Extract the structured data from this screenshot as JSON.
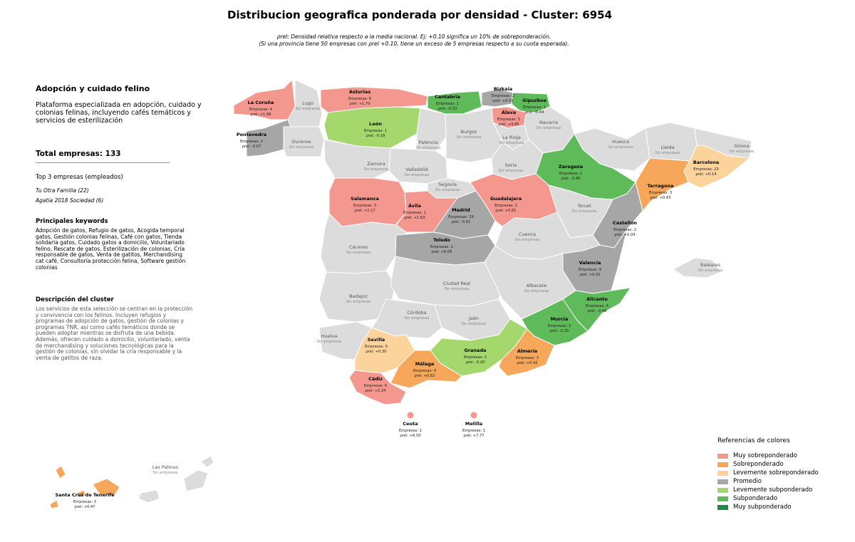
{
  "title": "Distribucion geografica ponderada por densidad - Cluster: 6954",
  "note_line1": "ρrel: Densidad relativa respecto a la media nacional. Ej: +0.10 significa un 10% de sobreponderación.",
  "note_line2": "(Si una provincia tiene 50 empresas con ρrel +0.10, tiene un exceso de 5 empresas respecto a su cuota esperada).",
  "panel": {
    "cluster_title": "Adopción y cuidado felino",
    "description": "Plataforma especializada en adopción, cuidado y colonias felinas, incluyendo cafés temáticos y servicios de esterilización",
    "total": "Total empresas: 133",
    "top3_heading": "Top 3 empresas (empleados)",
    "top3": [
      "Tu Otra Familia (22)",
      "Agatia 2018 Sociedad (6)"
    ],
    "keywords_heading": "Principales keywords",
    "keywords": "Adopción de gatos, Refugio de gatos, Acogida temporal gatos, Gestión colonias felinas, Café con gatos, Tienda solidaria gatos, Cuidado gatos a domicilio, Voluntariado felino, Rescate de gatos, Esterilización de colonias, Cría responsable de gatos, Venta de gatitos, Merchandising cat café, Consultoría protección felina, Software gestión colonias",
    "cluster_heading": "Descripción del cluster",
    "cluster_text": "Los servicios de esta selección se centran en la protección y convivencia con los felinos. Incluyen refugios y programas de adopción de gatos, gestión de colonias y programas TNR, así como cafés temáticos donde se pueden adoptar mientras se disfruta de una bebida. Además, ofrecen cuidado a domicilio, voluntariado, venta de merchandising y soluciones tecnológicas para la gestión de colonias, sin olvidar la cría responsable y la venta de gatitos de raza."
  },
  "legend": {
    "title": "Referencias de colores",
    "items": [
      {
        "label": "Muy sobreponderado",
        "color": "#f4978e"
      },
      {
        "label": "Sobreponderado",
        "color": "#f6a75a"
      },
      {
        "label": "Levemente sobreponderado",
        "color": "#fcd39b"
      },
      {
        "label": "Promedio",
        "color": "#a6a6a6"
      },
      {
        "label": "Levemente subponderado",
        "color": "#a4d86c"
      },
      {
        "label": "Subponderado",
        "color": "#5fba5a"
      },
      {
        "label": "Muy subponderado",
        "color": "#1d8a4a"
      }
    ]
  },
  "no_data_text": "Sin empresas",
  "provinces": [
    {
      "name": "La Coruña",
      "empresas": "Empresas: 4",
      "rho": "ρrel: +1.96",
      "category": "Muy sobreponderado"
    },
    {
      "name": "Lugo",
      "category": "none"
    },
    {
      "name": "Asturias",
      "empresas": "Empresas: 6",
      "rho": "ρrel: +1.70",
      "category": "Muy sobreponderado"
    },
    {
      "name": "Cantabria",
      "empresas": "Empresas: 1",
      "rho": "ρrel: -0.33",
      "category": "Subponderado"
    },
    {
      "name": "Bizkaia",
      "empresas": "Empresas: 2",
      "rho": "ρrel: +0.01",
      "category": "Promedio"
    },
    {
      "name": "Gipuzkoa",
      "empresas": "Empresas: 1",
      "rho": "ρrel: -0.44",
      "category": "Subponderado"
    },
    {
      "name": "Álava",
      "empresas": "Empresas: 3",
      "rho": "ρrel: +4.85",
      "category": "Muy sobreponderado"
    },
    {
      "name": "Navarra",
      "category": "none"
    },
    {
      "name": "Pontevedra",
      "empresas": "Empresas: 2",
      "rho": "ρrel: -0.07",
      "category": "Promedio"
    },
    {
      "name": "Ourense",
      "category": "none"
    },
    {
      "name": "León",
      "empresas": "Empresas: 1",
      "rho": "ρrel: -0.18",
      "category": "Levemente subponderado"
    },
    {
      "name": "Palencia",
      "category": "none"
    },
    {
      "name": "Burgos",
      "category": "none"
    },
    {
      "name": "La Rioja",
      "category": "none"
    },
    {
      "name": "Huesca",
      "category": "none"
    },
    {
      "name": "Lleida",
      "category": "none"
    },
    {
      "name": "Girona",
      "category": "none"
    },
    {
      "name": "Zamora",
      "category": "none"
    },
    {
      "name": "Valladolid",
      "category": "none"
    },
    {
      "name": "Soria",
      "category": "none"
    },
    {
      "name": "Zaragoza",
      "empresas": "Empresas: 1",
      "rho": "ρrel: -0.46",
      "category": "Subponderado"
    },
    {
      "name": "Barcelona",
      "empresas": "Empresas: 23",
      "rho": "ρrel: +0.14",
      "category": "Levemente sobreponderado"
    },
    {
      "name": "Tarragona",
      "empresas": "Empresas: 3",
      "rho": "ρrel: +0.63",
      "category": "Sobreponderado"
    },
    {
      "name": "Segovia",
      "category": "none"
    },
    {
      "name": "Salamanca",
      "empresas": "Empresas: 3",
      "rho": "ρrel: +2.17",
      "category": "Muy sobreponderado"
    },
    {
      "name": "Ávila",
      "empresas": "Empresas: 1",
      "rho": "ρrel: +1.63",
      "category": "Muy sobreponderado"
    },
    {
      "name": "Madrid",
      "empresas": "Empresas: 29",
      "rho": "ρrel: -0.01",
      "category": "Promedio"
    },
    {
      "name": "Guadalajara",
      "empresas": "Empresas: 1",
      "rho": "ρrel: +0.81",
      "category": "Muy sobreponderado"
    },
    {
      "name": "Teruel",
      "category": "none"
    },
    {
      "name": "Castellón",
      "empresas": "Empresas: 2",
      "rho": "ρrel: +0.09",
      "category": "Promedio"
    },
    {
      "name": "Cáceres",
      "category": "none"
    },
    {
      "name": "Toledo",
      "empresas": "Empresas: 2",
      "rho": "ρrel: +0.05",
      "category": "Promedio"
    },
    {
      "name": "Cuenca",
      "category": "none"
    },
    {
      "name": "Valencia",
      "empresas": "Empresas: 9",
      "rho": "ρrel: +0.02",
      "category": "Promedio"
    },
    {
      "name": "Baleares",
      "category": "none"
    },
    {
      "name": "Badajoz",
      "category": "none"
    },
    {
      "name": "Ciudad Real",
      "category": "none"
    },
    {
      "name": "Albacete",
      "category": "none"
    },
    {
      "name": "Alicante",
      "empresas": "Empresas: 4",
      "rho": "ρrel: -0.46",
      "category": "Subponderado"
    },
    {
      "name": "Córdoba",
      "category": "none"
    },
    {
      "name": "Jaén",
      "category": "none"
    },
    {
      "name": "Murcia",
      "empresas": "Empresas: 3",
      "rho": "ρrel: -0.35",
      "category": "Subponderado"
    },
    {
      "name": "Huelva",
      "category": "none"
    },
    {
      "name": "Sevilla",
      "empresas": "Empresas: 5",
      "rho": "ρrel: +0.30",
      "category": "Levemente sobreponderado"
    },
    {
      "name": "Granada",
      "empresas": "Empresas: 2",
      "rho": "ρrel: -0.20",
      "category": "Levemente subponderado"
    },
    {
      "name": "Almería",
      "empresas": "Empresas: 3",
      "rho": "ρrel: +0.42",
      "category": "Sobreponderado"
    },
    {
      "name": "Málaga",
      "empresas": "Empresas: 9",
      "rho": "ρrel: +0.62",
      "category": "Sobreponderado"
    },
    {
      "name": "Cádiz",
      "empresas": "Empresas: 6",
      "rho": "ρrel: +2.24",
      "category": "Muy sobreponderado"
    },
    {
      "name": "Ceuta",
      "empresas": "Empresas: 1",
      "rho": "ρrel: +6.50",
      "category": "Muy sobreponderado"
    },
    {
      "name": "Melilla",
      "empresas": "Empresas: 1",
      "rho": "ρrel: +7.77",
      "category": "Muy sobreponderado"
    },
    {
      "name": "Las Palmas",
      "category": "none"
    },
    {
      "name": "Santa Cruz de Tenerife",
      "empresas": "Empresas: 3",
      "rho": "ρrel: +0.47",
      "category": "Sobreponderado"
    }
  ]
}
